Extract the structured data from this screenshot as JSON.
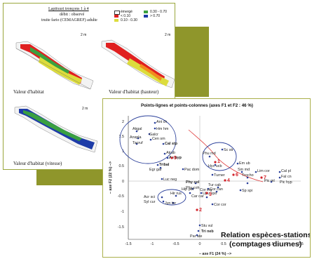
{
  "habitat_card": {
    "title_lines": [
      "Lapitxuri tronçons 1 à 4",
      "débit : observé",
      "truite fario (CEMAGREF) adulte"
    ],
    "legend": [
      {
        "label": "émergé",
        "color": "#ffffff"
      },
      {
        "label": "< 0.10",
        "color": "#e02020"
      },
      {
        "label": "0.10 - 0.30",
        "color": "#dcdc3c"
      },
      {
        "label": "0.30 - 0.70",
        "color": "#3aa040"
      },
      {
        "label": "> 0.70",
        "color": "#1e3ca8"
      }
    ],
    "scale_label": "2 m",
    "captions": [
      "Valeur d'habitat",
      "Valeur d'habitat (hauteur)",
      "Valeur d'habitat (vitesse)"
    ]
  },
  "pca_card": {
    "title": "Points-lignes et points-colonnes (axes F1 et F2 : 46 %)",
    "relation_lines": [
      "Relation espèces-stations",
      "(comptages diurnes)"
    ],
    "axes": {
      "xlabel": "– axe F1 (24 %) –>",
      "ylabel": "– axe F2 (22 %) –>",
      "x_ticks": [
        "-1.5",
        "-1",
        "-0.5",
        "0",
        "0.5",
        "1",
        "1.5",
        "2",
        "2.5"
      ],
      "y_ticks": [
        "2",
        "1.5",
        "1",
        "0.5",
        "0",
        "-0.5",
        "-1",
        "-1.5"
      ]
    },
    "species_labels": [
      "Ant ch",
      "Hm hm",
      "Akgal",
      "Galcr",
      "Anspla",
      "Cen sm",
      "Tacruf",
      "Cal stp",
      "Atrab",
      "Ae hyp",
      "Tribal",
      "Egr gar",
      "Pac dom",
      "Luc neg",
      "Sc str",
      "Phu md",
      "Hyc ucb",
      "Em ub",
      "Turner",
      "Sm md",
      "Lim cor",
      "Trocho",
      "Cal pl",
      "Fal cn",
      "Pic hyp",
      "Pic ml",
      "Phy col",
      "Hip pol",
      "Tur cab",
      "Cor can",
      "Cor ing",
      "Sp spi",
      "Upu epo",
      "Car car",
      "Phy coh",
      "Hir rus",
      "Acr sci",
      "Syl cur",
      "Jyn tor",
      "Cor cor",
      "Stu vul",
      "Tri neb",
      "Par ate"
    ],
    "station_labels": [
      "1",
      "2",
      "3",
      "4",
      "5",
      "6",
      "7"
    ]
  }
}
